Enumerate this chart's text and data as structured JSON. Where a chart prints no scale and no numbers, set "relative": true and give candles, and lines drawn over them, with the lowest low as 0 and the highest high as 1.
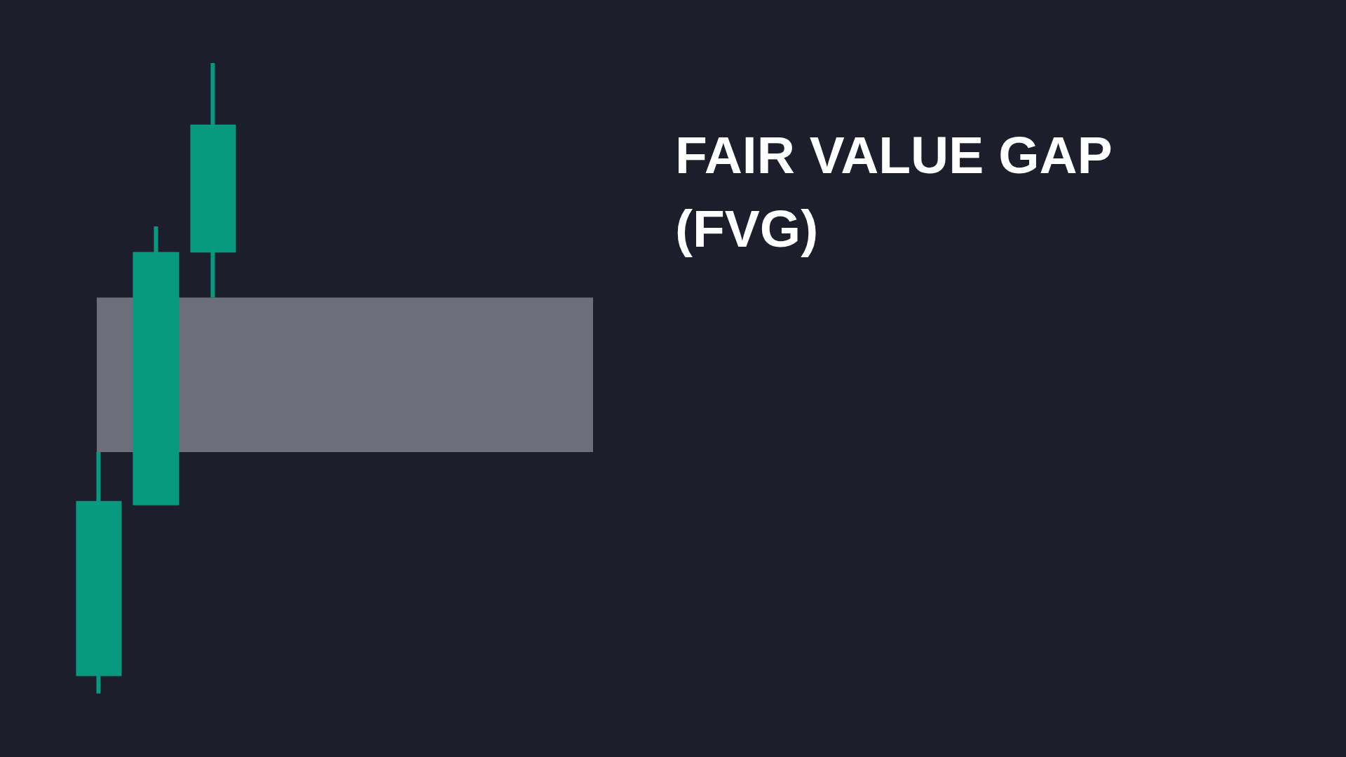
{
  "chart_data": {
    "type": "candlestick",
    "title": "FAIR VALUE GAP (FVG)",
    "relative": true,
    "categories": [
      null,
      null,
      null
    ],
    "ohlc": [
      [
        0.031,
        0.383,
        0,
        0.302
      ],
      [
        0.302,
        0.741,
        0.302,
        0.697
      ],
      [
        0.703,
        1,
        0.628,
        0.899
      ]
    ],
    "color": "#089981",
    "bands": [
      {
        "axis": "y",
        "from": 0.383,
        "to": 0.628,
        "color": "#6c6f79"
      }
    ]
  }
}
